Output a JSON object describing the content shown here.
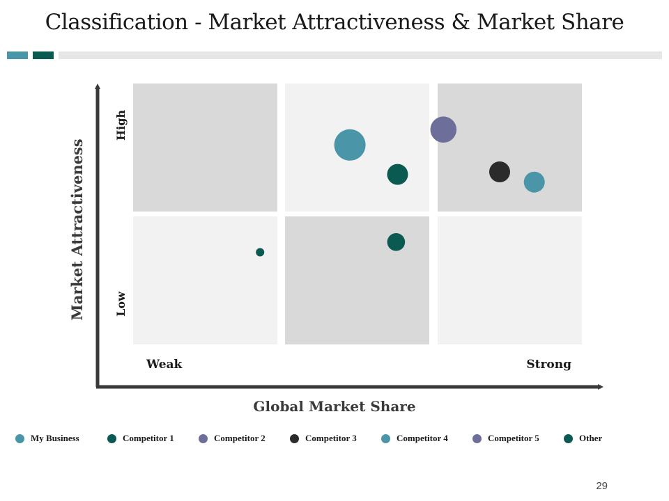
{
  "title": "Classification - Market Attractiveness & Market Share",
  "page_number": "29",
  "colors": {
    "teal": "#4a96a8",
    "dark_green": "#0b5a52",
    "purple": "#6e6e9a",
    "charcoal": "#2b2b2b",
    "cell_dark": "#d9d9d9",
    "cell_light": "#f2f2f2",
    "axis": "#3a3a3a"
  },
  "chart_data": {
    "type": "scatter",
    "title": "",
    "xlabel": "Global Market Share",
    "ylabel": "Market Attractiveness",
    "x_tick_labels": [
      "Weak",
      "Strong"
    ],
    "y_tick_labels": [
      "High",
      "Low"
    ],
    "grid": "3x2 matrix",
    "legend_position": "bottom",
    "series": [
      {
        "name": "My Business",
        "color": "#4a96a8",
        "x": 1.45,
        "y": 1.52,
        "size": 3
      },
      {
        "name": "Competitor 1",
        "color": "#0b5a52",
        "x": 1.78,
        "y": 1.29,
        "size": 2
      },
      {
        "name": "Competitor 2",
        "color": "#6e6e9a",
        "x": 2.04,
        "y": 1.64,
        "size": 2.5
      },
      {
        "name": "Competitor 3",
        "color": "#2b2b2b",
        "x": 2.43,
        "y": 1.31,
        "size": 2
      },
      {
        "name": "Competitor 4",
        "color": "#4a96a8",
        "x": 2.67,
        "y": 1.23,
        "size": 2
      },
      {
        "name": "Competitor 5",
        "color": "#6e6e9a",
        "x": null,
        "y": null,
        "size": null
      },
      {
        "name": "Other",
        "color": "#0b5a52",
        "x": 1.77,
        "y": 0.8,
        "size": 1.7
      },
      {
        "name": "Other",
        "color": "#0b5a52",
        "x": 0.88,
        "y": 0.72,
        "size": 0.8
      }
    ]
  },
  "legend": [
    {
      "label": "My Business",
      "color": "#4a96a8"
    },
    {
      "label": "Competitor 1",
      "color": "#0b5a52"
    },
    {
      "label": "Competitor 2",
      "color": "#6e6e9a"
    },
    {
      "label": "Competitor 3",
      "color": "#2b2b2b"
    },
    {
      "label": "Competitor 4",
      "color": "#4a96a8"
    },
    {
      "label": "Competitor 5",
      "color": "#6e6e9a"
    },
    {
      "label": "Other",
      "color": "#0b5a52"
    }
  ]
}
